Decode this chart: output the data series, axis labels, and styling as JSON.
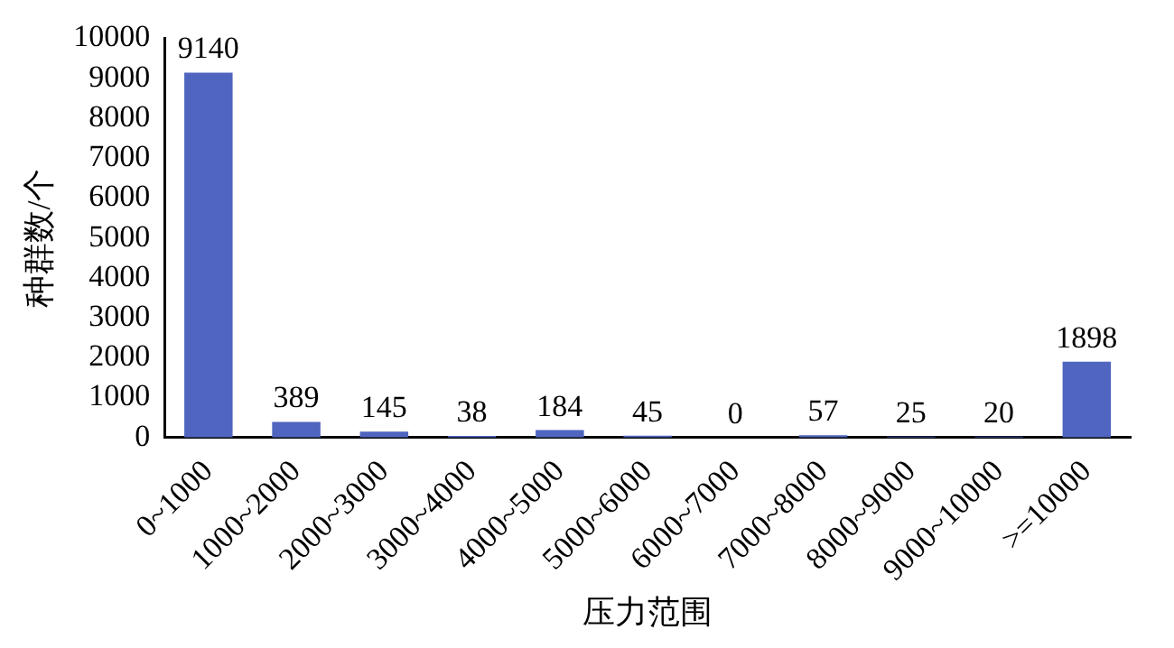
{
  "chart_data": {
    "type": "bar",
    "xlabel": "压力范围",
    "ylabel": "种群数/个",
    "categories": [
      "0~1000",
      "1000~2000",
      "2000~3000",
      "3000~4000",
      "4000~5000",
      "5000~6000",
      "6000~7000",
      "7000~8000",
      "8000~9000",
      "9000~10000",
      ">=10000"
    ],
    "values": [
      9140,
      389,
      145,
      38,
      184,
      45,
      0,
      57,
      25,
      20,
      1898
    ],
    "color": "#4f65bf",
    "ylim": [
      0,
      10000
    ],
    "yticks": [
      0,
      1000,
      2000,
      3000,
      4000,
      5000,
      6000,
      7000,
      8000,
      9000,
      10000
    ],
    "grid": false,
    "legend": false,
    "data_labels": true
  }
}
